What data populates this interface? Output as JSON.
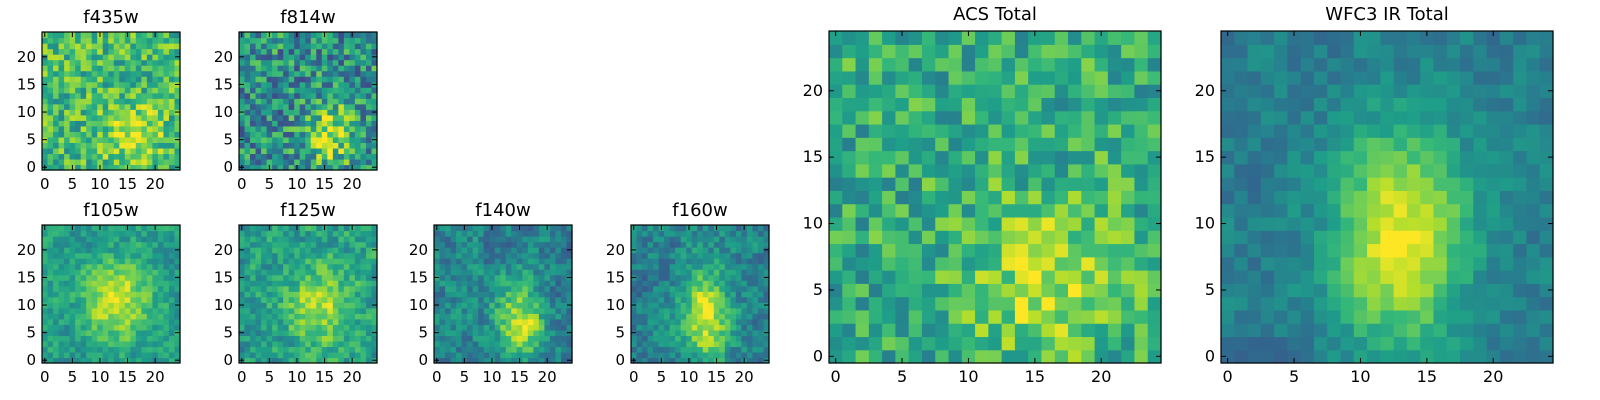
{
  "figure": {
    "background": "#ffffff",
    "colormap": "viridis"
  },
  "chart_data": [
    {
      "id": "f435w",
      "type": "heatmap",
      "title": "f435w",
      "size": 25,
      "xticks": [
        0,
        5,
        10,
        15,
        20
      ],
      "yticks": [
        0,
        5,
        10,
        15,
        20
      ],
      "xlim": [
        -0.5,
        24.5
      ],
      "ylim": [
        -0.5,
        24.5
      ],
      "center": [
        16,
        6
      ],
      "sigma": [
        3.5,
        3.5
      ],
      "amp": 0.25,
      "base": 0.68,
      "noise": 0.22,
      "seed": 11,
      "smooth": 0
    },
    {
      "id": "f814w",
      "type": "heatmap",
      "title": "f814w",
      "size": 25,
      "xticks": [
        0,
        5,
        10,
        15,
        20
      ],
      "yticks": [
        0,
        5,
        10,
        15,
        20
      ],
      "xlim": [
        -0.5,
        24.5
      ],
      "ylim": [
        -0.5,
        24.5
      ],
      "center": [
        16,
        6
      ],
      "sigma": [
        3,
        4
      ],
      "amp": 0.4,
      "base": 0.5,
      "noise": 0.28,
      "seed": 23,
      "smooth": 0
    },
    {
      "id": "f105w",
      "type": "heatmap",
      "title": "f105w",
      "size": 25,
      "xticks": [
        0,
        5,
        10,
        15,
        20
      ],
      "yticks": [
        0,
        5,
        10,
        15,
        20
      ],
      "xlim": [
        -0.5,
        24.5
      ],
      "ylim": [
        -0.5,
        24.5
      ],
      "center": [
        13,
        11
      ],
      "sigma": [
        4,
        5
      ],
      "amp": 0.4,
      "base": 0.55,
      "noise": 0.2,
      "seed": 37,
      "smooth": 1
    },
    {
      "id": "f125w",
      "type": "heatmap",
      "title": "f125w",
      "size": 25,
      "xticks": [
        0,
        5,
        10,
        15,
        20
      ],
      "yticks": [
        0,
        5,
        10,
        15,
        20
      ],
      "xlim": [
        -0.5,
        24.5
      ],
      "ylim": [
        -0.5,
        24.5
      ],
      "center": [
        14,
        10
      ],
      "sigma": [
        4,
        5
      ],
      "amp": 0.35,
      "base": 0.55,
      "noise": 0.24,
      "seed": 41,
      "smooth": 1
    },
    {
      "id": "f140w",
      "type": "heatmap",
      "title": "f140w",
      "size": 25,
      "xticks": [
        0,
        5,
        10,
        15,
        20
      ],
      "yticks": [
        0,
        5,
        10,
        15,
        20
      ],
      "xlim": [
        -0.5,
        24.5
      ],
      "ylim": [
        -0.5,
        24.5
      ],
      "center": [
        15,
        7
      ],
      "sigma": [
        3,
        5
      ],
      "amp": 0.45,
      "base": 0.45,
      "noise": 0.24,
      "seed": 53,
      "smooth": 1
    },
    {
      "id": "f160w",
      "type": "heatmap",
      "title": "f160w",
      "size": 25,
      "xticks": [
        0,
        5,
        10,
        15,
        20
      ],
      "yticks": [
        0,
        5,
        10,
        15,
        20
      ],
      "xlim": [
        -0.5,
        24.5
      ],
      "ylim": [
        -0.5,
        24.5
      ],
      "center": [
        13,
        8
      ],
      "sigma": [
        3,
        6
      ],
      "amp": 0.5,
      "base": 0.45,
      "noise": 0.22,
      "seed": 67,
      "smooth": 1
    },
    {
      "id": "acs-total",
      "type": "heatmap",
      "title": "ACS Total",
      "size": 25,
      "xticks": [
        0,
        5,
        10,
        15,
        20
      ],
      "yticks": [
        0,
        5,
        10,
        15,
        20
      ],
      "xlim": [
        -0.5,
        24.5
      ],
      "ylim": [
        -0.5,
        24.5
      ],
      "center": [
        16,
        6
      ],
      "sigma": [
        4,
        4
      ],
      "amp": 0.3,
      "base": 0.62,
      "noise": 0.2,
      "seed": 79,
      "smooth": 0
    },
    {
      "id": "wfc3-ir-total",
      "type": "heatmap",
      "title": "WFC3 IR Total",
      "size": 25,
      "xticks": [
        0,
        5,
        10,
        15,
        20
      ],
      "yticks": [
        0,
        5,
        10,
        15,
        20
      ],
      "xlim": [
        -0.5,
        24.5
      ],
      "ylim": [
        -0.5,
        24.5
      ],
      "center": [
        13,
        9
      ],
      "sigma": [
        3.5,
        6
      ],
      "amp": 0.55,
      "base": 0.42,
      "noise": 0.14,
      "seed": 97,
      "smooth": 1
    }
  ]
}
